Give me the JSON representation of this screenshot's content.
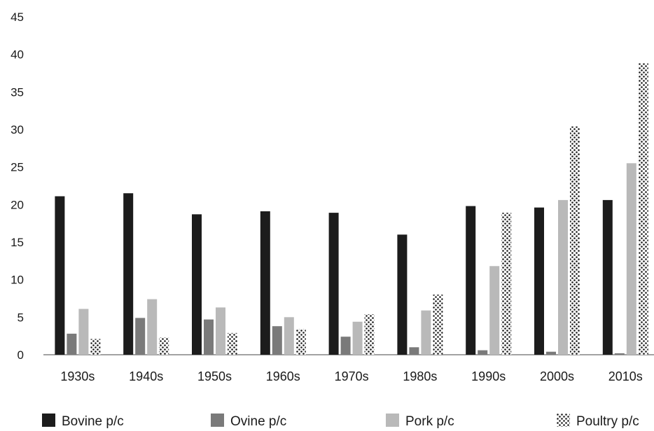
{
  "chart_data": {
    "type": "bar",
    "categories": [
      "1930s",
      "1940s",
      "1950s",
      "1960s",
      "1970s",
      "1980s",
      "1990s",
      "2000s",
      "2010s"
    ],
    "series": [
      {
        "name": "Bovine p/c",
        "color": "#1c1c1c",
        "pattern": "solid",
        "values": [
          21.1,
          21.5,
          18.7,
          19.1,
          18.9,
          16.0,
          19.8,
          19.6,
          20.6
        ]
      },
      {
        "name": "Ovine p/c",
        "color": "#7a7a7a",
        "pattern": "solid",
        "values": [
          2.8,
          4.9,
          4.7,
          3.8,
          2.4,
          1.0,
          0.6,
          0.4,
          0.2
        ]
      },
      {
        "name": "Pork p/c",
        "color": "#b9b9b9",
        "pattern": "solid",
        "values": [
          6.1,
          7.4,
          6.3,
          5.0,
          4.4,
          5.9,
          11.8,
          20.6,
          25.5
        ]
      },
      {
        "name": "Poultry p/c",
        "color": "#1c1c1c",
        "pattern": "dots",
        "values": [
          2.1,
          2.3,
          2.9,
          3.4,
          5.4,
          8.0,
          18.9,
          30.4,
          38.8
        ]
      }
    ],
    "yticks": [
      "0",
      "5",
      "10",
      "15",
      "20",
      "25",
      "30",
      "35",
      "40",
      "45"
    ],
    "ylim": [
      0,
      45
    ],
    "grid": false,
    "legend_position": "bottom"
  }
}
